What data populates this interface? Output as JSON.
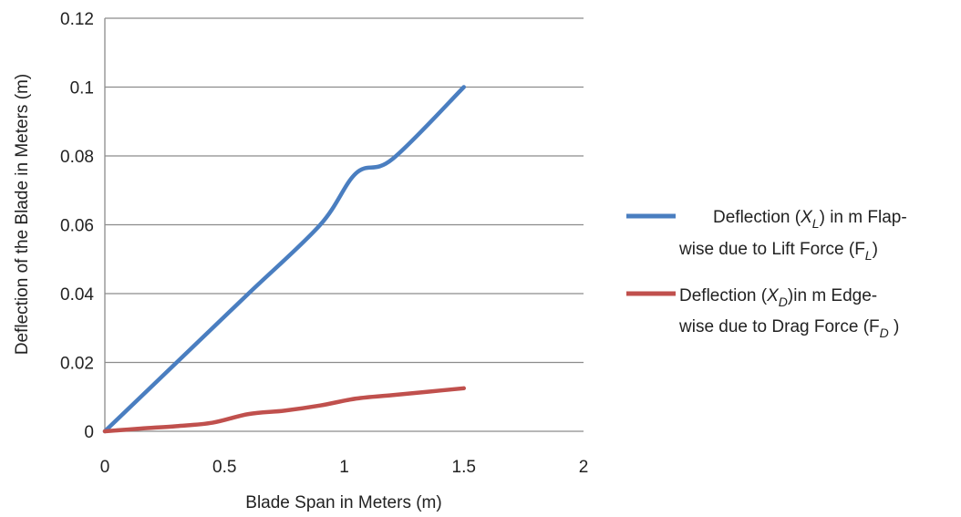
{
  "chart_data": {
    "type": "line",
    "title": "",
    "xlabel": "Blade Span in Meters (m)",
    "ylabel": "Deflection of the Blade in Meters (m)",
    "xlim": [
      0,
      2
    ],
    "ylim": [
      0,
      0.12
    ],
    "x_ticks": [
      "0",
      "0.5",
      "1",
      "1.5",
      "2"
    ],
    "y_ticks": [
      "0",
      "0.02",
      "0.04",
      "0.06",
      "0.08",
      "0.1",
      "0.12"
    ],
    "grid": "horizontal",
    "legend_position": "right",
    "series": [
      {
        "name": "Deflection (XL) in m Flap-wise due to Lift Force (FL)",
        "color": "#4a7ec0",
        "x": [
          0,
          0.3,
          0.6,
          0.9,
          1.05,
          1.2,
          1.5
        ],
        "y": [
          0,
          0.02,
          0.04,
          0.06,
          0.075,
          0.079,
          0.1
        ]
      },
      {
        "name": "Deflection (XD)in m Edge-wise due to Drag Force (FD )",
        "color": "#c0504d",
        "x": [
          0,
          0.15,
          0.3,
          0.45,
          0.6,
          0.75,
          0.9,
          1.05,
          1.2,
          1.35,
          1.5
        ],
        "y": [
          0,
          0.0008,
          0.0015,
          0.0025,
          0.005,
          0.006,
          0.0075,
          0.0095,
          0.0105,
          0.0115,
          0.0125
        ]
      }
    ],
    "legend": {
      "item1_line1_a": "Deflection (",
      "item1_line1_sym": "X",
      "item1_line1_sub": "L",
      "item1_line1_b": ") in m Flap-",
      "item1_line2_a": "wise due to Lift Force (F",
      "item1_line2_sub": "L",
      "item1_line2_b": ")",
      "item2_line1_a": "Deflection (",
      "item2_line1_sym": "X",
      "item2_line1_sub": "D",
      "item2_line1_b": ")in m Edge-",
      "item2_line2_a": "wise due to Drag Force (F",
      "item2_line2_sub": "D",
      "item2_line2_b": " )"
    }
  }
}
